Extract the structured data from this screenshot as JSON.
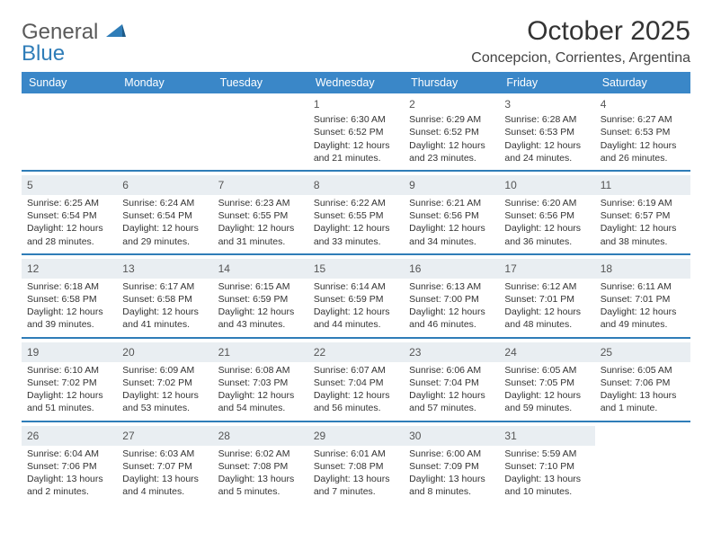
{
  "brand": {
    "name_a": "General",
    "name_b": "Blue"
  },
  "header": {
    "title": "October 2025",
    "location": "Concepcion, Corrientes, Argentina"
  },
  "style": {
    "header_bg": "#3a87c8",
    "header_fg": "#ffffff",
    "week_divider": "#2f7db8",
    "daynum_shade": "#e9eef2",
    "text_color": "#333333",
    "logo_gray": "#5a5a5a",
    "logo_blue": "#2f7db8",
    "page_bg": "#ffffff",
    "title_fontsize": 30,
    "location_fontsize": 16,
    "dow_fontsize": 12.5,
    "cell_fontsize": 10.5
  },
  "dow": [
    "Sunday",
    "Monday",
    "Tuesday",
    "Wednesday",
    "Thursday",
    "Friday",
    "Saturday"
  ],
  "weeks": [
    [
      null,
      null,
      null,
      {
        "d": "1",
        "sr": "Sunrise: 6:30 AM",
        "ss": "Sunset: 6:52 PM",
        "dl1": "Daylight: 12 hours",
        "dl2": "and 21 minutes."
      },
      {
        "d": "2",
        "sr": "Sunrise: 6:29 AM",
        "ss": "Sunset: 6:52 PM",
        "dl1": "Daylight: 12 hours",
        "dl2": "and 23 minutes."
      },
      {
        "d": "3",
        "sr": "Sunrise: 6:28 AM",
        "ss": "Sunset: 6:53 PM",
        "dl1": "Daylight: 12 hours",
        "dl2": "and 24 minutes."
      },
      {
        "d": "4",
        "sr": "Sunrise: 6:27 AM",
        "ss": "Sunset: 6:53 PM",
        "dl1": "Daylight: 12 hours",
        "dl2": "and 26 minutes."
      }
    ],
    [
      {
        "d": "5",
        "sr": "Sunrise: 6:25 AM",
        "ss": "Sunset: 6:54 PM",
        "dl1": "Daylight: 12 hours",
        "dl2": "and 28 minutes."
      },
      {
        "d": "6",
        "sr": "Sunrise: 6:24 AM",
        "ss": "Sunset: 6:54 PM",
        "dl1": "Daylight: 12 hours",
        "dl2": "and 29 minutes."
      },
      {
        "d": "7",
        "sr": "Sunrise: 6:23 AM",
        "ss": "Sunset: 6:55 PM",
        "dl1": "Daylight: 12 hours",
        "dl2": "and 31 minutes."
      },
      {
        "d": "8",
        "sr": "Sunrise: 6:22 AM",
        "ss": "Sunset: 6:55 PM",
        "dl1": "Daylight: 12 hours",
        "dl2": "and 33 minutes."
      },
      {
        "d": "9",
        "sr": "Sunrise: 6:21 AM",
        "ss": "Sunset: 6:56 PM",
        "dl1": "Daylight: 12 hours",
        "dl2": "and 34 minutes."
      },
      {
        "d": "10",
        "sr": "Sunrise: 6:20 AM",
        "ss": "Sunset: 6:56 PM",
        "dl1": "Daylight: 12 hours",
        "dl2": "and 36 minutes."
      },
      {
        "d": "11",
        "sr": "Sunrise: 6:19 AM",
        "ss": "Sunset: 6:57 PM",
        "dl1": "Daylight: 12 hours",
        "dl2": "and 38 minutes."
      }
    ],
    [
      {
        "d": "12",
        "sr": "Sunrise: 6:18 AM",
        "ss": "Sunset: 6:58 PM",
        "dl1": "Daylight: 12 hours",
        "dl2": "and 39 minutes."
      },
      {
        "d": "13",
        "sr": "Sunrise: 6:17 AM",
        "ss": "Sunset: 6:58 PM",
        "dl1": "Daylight: 12 hours",
        "dl2": "and 41 minutes."
      },
      {
        "d": "14",
        "sr": "Sunrise: 6:15 AM",
        "ss": "Sunset: 6:59 PM",
        "dl1": "Daylight: 12 hours",
        "dl2": "and 43 minutes."
      },
      {
        "d": "15",
        "sr": "Sunrise: 6:14 AM",
        "ss": "Sunset: 6:59 PM",
        "dl1": "Daylight: 12 hours",
        "dl2": "and 44 minutes."
      },
      {
        "d": "16",
        "sr": "Sunrise: 6:13 AM",
        "ss": "Sunset: 7:00 PM",
        "dl1": "Daylight: 12 hours",
        "dl2": "and 46 minutes."
      },
      {
        "d": "17",
        "sr": "Sunrise: 6:12 AM",
        "ss": "Sunset: 7:01 PM",
        "dl1": "Daylight: 12 hours",
        "dl2": "and 48 minutes."
      },
      {
        "d": "18",
        "sr": "Sunrise: 6:11 AM",
        "ss": "Sunset: 7:01 PM",
        "dl1": "Daylight: 12 hours",
        "dl2": "and 49 minutes."
      }
    ],
    [
      {
        "d": "19",
        "sr": "Sunrise: 6:10 AM",
        "ss": "Sunset: 7:02 PM",
        "dl1": "Daylight: 12 hours",
        "dl2": "and 51 minutes."
      },
      {
        "d": "20",
        "sr": "Sunrise: 6:09 AM",
        "ss": "Sunset: 7:02 PM",
        "dl1": "Daylight: 12 hours",
        "dl2": "and 53 minutes."
      },
      {
        "d": "21",
        "sr": "Sunrise: 6:08 AM",
        "ss": "Sunset: 7:03 PM",
        "dl1": "Daylight: 12 hours",
        "dl2": "and 54 minutes."
      },
      {
        "d": "22",
        "sr": "Sunrise: 6:07 AM",
        "ss": "Sunset: 7:04 PM",
        "dl1": "Daylight: 12 hours",
        "dl2": "and 56 minutes."
      },
      {
        "d": "23",
        "sr": "Sunrise: 6:06 AM",
        "ss": "Sunset: 7:04 PM",
        "dl1": "Daylight: 12 hours",
        "dl2": "and 57 minutes."
      },
      {
        "d": "24",
        "sr": "Sunrise: 6:05 AM",
        "ss": "Sunset: 7:05 PM",
        "dl1": "Daylight: 12 hours",
        "dl2": "and 59 minutes."
      },
      {
        "d": "25",
        "sr": "Sunrise: 6:05 AM",
        "ss": "Sunset: 7:06 PM",
        "dl1": "Daylight: 13 hours",
        "dl2": "and 1 minute."
      }
    ],
    [
      {
        "d": "26",
        "sr": "Sunrise: 6:04 AM",
        "ss": "Sunset: 7:06 PM",
        "dl1": "Daylight: 13 hours",
        "dl2": "and 2 minutes."
      },
      {
        "d": "27",
        "sr": "Sunrise: 6:03 AM",
        "ss": "Sunset: 7:07 PM",
        "dl1": "Daylight: 13 hours",
        "dl2": "and 4 minutes."
      },
      {
        "d": "28",
        "sr": "Sunrise: 6:02 AM",
        "ss": "Sunset: 7:08 PM",
        "dl1": "Daylight: 13 hours",
        "dl2": "and 5 minutes."
      },
      {
        "d": "29",
        "sr": "Sunrise: 6:01 AM",
        "ss": "Sunset: 7:08 PM",
        "dl1": "Daylight: 13 hours",
        "dl2": "and 7 minutes."
      },
      {
        "d": "30",
        "sr": "Sunrise: 6:00 AM",
        "ss": "Sunset: 7:09 PM",
        "dl1": "Daylight: 13 hours",
        "dl2": "and 8 minutes."
      },
      {
        "d": "31",
        "sr": "Sunrise: 5:59 AM",
        "ss": "Sunset: 7:10 PM",
        "dl1": "Daylight: 13 hours",
        "dl2": "and 10 minutes."
      },
      null
    ]
  ]
}
